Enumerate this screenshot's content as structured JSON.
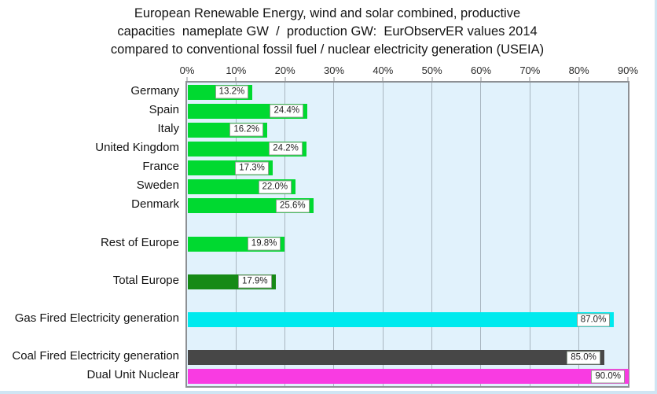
{
  "page": {
    "background": "#FFFFFF",
    "edge_color": "#CFE5F3"
  },
  "chart_data": {
    "type": "bar",
    "orientation": "horizontal",
    "title": "European Renewable Energy, wind and solar combined, productive capacities nameplate GW / production GW: EurObservER values 2014 compared to conventional fossil fuel / nuclear electricity generation (USEIA)",
    "title_lines": [
      "European Renewable Energy, wind and solar combined, productive",
      "capacities  nameplate GW  /  production GW:  EurObservER values 2014",
      "compared to conventional fossil fuel / nuclear electricity generation (USEIA)"
    ],
    "x_axis": {
      "unit": "%",
      "min": 0,
      "max": 90,
      "tick_step": 10,
      "ticks": [
        "0%",
        "10%",
        "20%",
        "30%",
        "40%",
        "50%",
        "60%",
        "70%",
        "80%",
        "90%"
      ],
      "grid": true
    },
    "colors": {
      "renewable_green": "#00D930",
      "total_europe_green": "#168A16",
      "gas_cyan": "#00EAEE",
      "coal_gray": "#474747",
      "nuclear_magenta": "#F93BE2",
      "plot_background": "#E1F2FC",
      "gridline": "#A8B6C0",
      "plot_border": "#8D9094"
    },
    "rows": [
      {
        "label": "Germany",
        "value": 13.2,
        "display": "13.2%",
        "color": "#00D930"
      },
      {
        "label": "Spain",
        "value": 24.4,
        "display": "24.4%",
        "color": "#00D930"
      },
      {
        "label": "Italy",
        "value": 16.2,
        "display": "16.2%",
        "color": "#00D930"
      },
      {
        "label": "United Kingdom",
        "value": 24.2,
        "display": "24.2%",
        "color": "#00D930"
      },
      {
        "label": "France",
        "value": 17.3,
        "display": "17.3%",
        "color": "#00D930"
      },
      {
        "label": "Sweden",
        "value": 22.0,
        "display": "22.0%",
        "color": "#00D930"
      },
      {
        "label": "Denmark",
        "value": 25.6,
        "display": "25.6%",
        "color": "#00D930"
      },
      {
        "spacer": true
      },
      {
        "label": "Rest of Europe",
        "value": 19.8,
        "display": "19.8%",
        "color": "#00D930"
      },
      {
        "spacer": true
      },
      {
        "label": "Total Europe",
        "value": 17.9,
        "display": "17.9%",
        "color": "#168A16"
      },
      {
        "spacer": true
      },
      {
        "label": "Gas Fired Electricity generation",
        "value": 87.0,
        "display": "87.0%",
        "color": "#00EAEE"
      },
      {
        "spacer": true
      },
      {
        "label": "Coal Fired Electricity generation",
        "value": 85.0,
        "display": "85.0%",
        "color": "#474747"
      },
      {
        "label": "Dual Unit Nuclear",
        "value": 90.0,
        "display": "90.0%",
        "color": "#F93BE2"
      }
    ]
  }
}
